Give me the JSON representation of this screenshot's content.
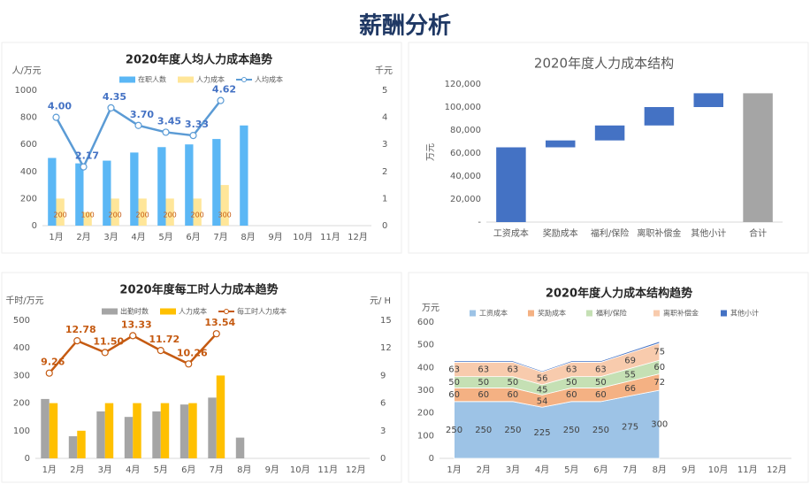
{
  "title": "薪酬分析",
  "chart_data": [
    {
      "type": "combo",
      "title": "2020年度人均人力成本趋势",
      "y_label": "人/万元",
      "y2_label": "千元",
      "categories": [
        "1月",
        "2月",
        "3月",
        "4月",
        "5月",
        "6月",
        "7月",
        "8月",
        "9月",
        "10月",
        "11月",
        "12月"
      ],
      "ylim": [
        0,
        1000
      ],
      "yticks": [
        0,
        200,
        400,
        600,
        800,
        1000
      ],
      "y2lim": [
        0,
        5
      ],
      "y2ticks": [
        0,
        1,
        2,
        3,
        4,
        5
      ],
      "series": [
        {
          "name": "在职人数",
          "type": "bar",
          "color": "#5bb7f5",
          "values": [
            500,
            460,
            480,
            540,
            580,
            600,
            640,
            740,
            null,
            null,
            null,
            null
          ]
        },
        {
          "name": "人力成本",
          "type": "bar",
          "color": "#ffe699",
          "data_labels": true,
          "label_color": "#c55a11",
          "values": [
            200,
            100,
            200,
            200,
            200,
            200,
            300,
            null,
            null,
            null,
            null,
            null
          ]
        },
        {
          "name": "人均成本",
          "type": "line",
          "axis": "y2",
          "color": "#5b9bd5",
          "label_color": "#4472c4",
          "values": [
            4.0,
            2.17,
            4.35,
            3.7,
            3.45,
            3.33,
            4.62,
            null,
            null,
            null,
            null,
            null
          ],
          "value_labels": [
            "4.00",
            "2.17",
            "4.35",
            "3.70",
            "3.45",
            "3.33",
            "4.62",
            null,
            null,
            null,
            null,
            null
          ]
        }
      ]
    },
    {
      "type": "waterfall",
      "title": "2020年度人力成本结构",
      "y_label": "万元",
      "categories": [
        "工资成本",
        "奖励成本",
        "福利/保险",
        "离职补偿金",
        "其他小计",
        "合计"
      ],
      "values": [
        65000,
        6000,
        13000,
        16000,
        12000,
        112000
      ],
      "color": "#4472c4",
      "total_color": "#a5a5a5",
      "ylim": [
        0,
        120000
      ],
      "yticks": [
        {
          "value": 0,
          "label": "-"
        },
        {
          "value": 20000,
          "label": "20,000"
        },
        {
          "value": 40000,
          "label": "40,000"
        },
        {
          "value": 60000,
          "label": "60,000"
        },
        {
          "value": 80000,
          "label": "80,000"
        },
        {
          "value": 100000,
          "label": "100,000"
        },
        {
          "value": 120000,
          "label": "120,000"
        }
      ]
    },
    {
      "type": "combo",
      "title": "2020年度每工时人力成本趋势",
      "y_label": "千时/万元",
      "y2_label": "元/ H",
      "categories": [
        "1月",
        "2月",
        "3月",
        "4月",
        "5月",
        "6月",
        "7月",
        "8月",
        "9月",
        "10月",
        "11月",
        "12月"
      ],
      "ylim": [
        0,
        500
      ],
      "yticks": [
        0,
        100,
        200,
        300,
        400,
        500
      ],
      "y2lim": [
        0,
        15
      ],
      "y2ticks": [
        0,
        3,
        6,
        9,
        12,
        15
      ],
      "series": [
        {
          "name": "出勤时数",
          "type": "bar",
          "color": "#a5a5a5",
          "values": [
            215,
            80,
            170,
            150,
            170,
            195,
            220,
            75,
            null,
            null,
            null,
            null
          ]
        },
        {
          "name": "人力成本",
          "type": "bar",
          "color": "#ffc000",
          "values": [
            200,
            100,
            200,
            200,
            200,
            200,
            300,
            null,
            null,
            null,
            null,
            null
          ]
        },
        {
          "name": "每工时人力成本",
          "type": "line",
          "axis": "y2",
          "color": "#c55a11",
          "label_color": "#c55a11",
          "values": [
            9.26,
            12.78,
            11.5,
            13.33,
            11.72,
            10.26,
            13.54,
            null,
            null,
            null,
            null,
            null
          ],
          "value_labels": [
            "9.26",
            "12.78",
            "11.50",
            "13.33",
            "11.72",
            "10.26",
            "13.54",
            null,
            null,
            null,
            null,
            null
          ]
        }
      ]
    },
    {
      "type": "area",
      "stacked": true,
      "title": "2020年度人力成本结构趋势",
      "y_label": "万元",
      "categories": [
        "1月",
        "2月",
        "3月",
        "4月",
        "5月",
        "6月",
        "7月",
        "8月",
        "9月",
        "10月",
        "11月",
        "12月"
      ],
      "ylim": [
        0,
        600
      ],
      "yticks": [
        0,
        100,
        200,
        300,
        400,
        500,
        600
      ],
      "series": [
        {
          "name": "工资成本",
          "color": "#9dc3e6",
          "data_labels": true,
          "values": [
            250,
            250,
            250,
            225,
            250,
            250,
            275,
            300,
            null,
            null,
            null,
            null
          ]
        },
        {
          "name": "奖励成本",
          "color": "#f4b183",
          "data_labels": true,
          "values": [
            60,
            60,
            60,
            54,
            60,
            60,
            66,
            72,
            null,
            null,
            null,
            null
          ]
        },
        {
          "name": "福利/保险",
          "color": "#c5e0b4",
          "data_labels": true,
          "values": [
            50,
            50,
            50,
            45,
            50,
            50,
            55,
            60,
            null,
            null,
            null,
            null
          ]
        },
        {
          "name": "离职补偿金",
          "color": "#f8cbad",
          "data_labels": true,
          "values": [
            63,
            63,
            63,
            56,
            63,
            63,
            69,
            75,
            null,
            null,
            null,
            null
          ]
        },
        {
          "name": "其他小计",
          "color": "#4472c4",
          "values": [
            6,
            6,
            6,
            5,
            6,
            6,
            7,
            8,
            null,
            null,
            null,
            null
          ]
        }
      ]
    }
  ]
}
